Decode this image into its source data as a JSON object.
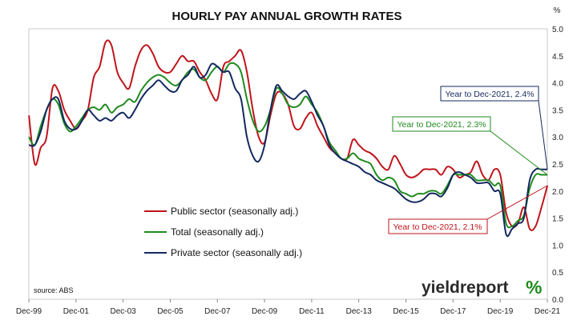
{
  "chart_data": {
    "type": "line",
    "title": "HOURLY PAY ANNUAL GROWTH RATES",
    "y_unit": "%",
    "ylim": [
      0,
      5
    ],
    "yticks": [
      "0.0",
      "0.5",
      "1.0",
      "1.5",
      "2.0",
      "2.5",
      "3.0",
      "3.5",
      "4.0",
      "4.5",
      "5.0"
    ],
    "xlim": [
      1999.917,
      2021.917
    ],
    "xticks": [
      {
        "label": "Dec-99",
        "x": 1999.917
      },
      {
        "label": "Dec-01",
        "x": 2001.917
      },
      {
        "label": "Dec-03",
        "x": 2003.917
      },
      {
        "label": "Dec-05",
        "x": 2005.917
      },
      {
        "label": "Dec-07",
        "x": 2007.917
      },
      {
        "label": "Dec-09",
        "x": 2009.917
      },
      {
        "label": "Dec-11",
        "x": 2011.917
      },
      {
        "label": "Dec-13",
        "x": 2013.917
      },
      {
        "label": "Dec-15",
        "x": 2015.917
      },
      {
        "label": "Dec-17",
        "x": 2017.917
      },
      {
        "label": "Dec-19",
        "x": 2019.917
      },
      {
        "label": "Dec-21",
        "x": 2021.917
      }
    ],
    "grid": false,
    "legend_position": "center-left",
    "series": [
      {
        "name": "Public sector (seasonally adj.)",
        "color": "#c0141b",
        "points": [
          [
            1999.92,
            3.4
          ],
          [
            2000.17,
            2.5
          ],
          [
            2000.42,
            2.8
          ],
          [
            2000.67,
            3.0
          ],
          [
            2000.92,
            3.9
          ],
          [
            2001.17,
            3.85
          ],
          [
            2001.42,
            3.5
          ],
          [
            2001.67,
            3.3
          ],
          [
            2001.92,
            3.15
          ],
          [
            2002.17,
            3.3
          ],
          [
            2002.42,
            3.5
          ],
          [
            2002.67,
            4.1
          ],
          [
            2002.92,
            4.3
          ],
          [
            2003.17,
            4.75
          ],
          [
            2003.42,
            4.7
          ],
          [
            2003.67,
            4.2
          ],
          [
            2003.92,
            4.0
          ],
          [
            2004.17,
            3.9
          ],
          [
            2004.42,
            4.3
          ],
          [
            2004.67,
            4.6
          ],
          [
            2004.92,
            4.7
          ],
          [
            2005.17,
            4.55
          ],
          [
            2005.42,
            4.3
          ],
          [
            2005.67,
            4.2
          ],
          [
            2005.92,
            4.2
          ],
          [
            2006.17,
            4.35
          ],
          [
            2006.42,
            4.5
          ],
          [
            2006.67,
            4.4
          ],
          [
            2006.92,
            4.4
          ],
          [
            2007.17,
            4.2
          ],
          [
            2007.42,
            4.05
          ],
          [
            2007.67,
            3.8
          ],
          [
            2007.92,
            3.7
          ],
          [
            2008.17,
            4.3
          ],
          [
            2008.42,
            4.4
          ],
          [
            2008.67,
            4.5
          ],
          [
            2008.92,
            4.6
          ],
          [
            2009.17,
            4.2
          ],
          [
            2009.42,
            3.5
          ],
          [
            2009.67,
            3.0
          ],
          [
            2009.92,
            2.9
          ],
          [
            2010.17,
            3.4
          ],
          [
            2010.42,
            3.8
          ],
          [
            2010.67,
            3.8
          ],
          [
            2010.92,
            3.6
          ],
          [
            2011.17,
            3.2
          ],
          [
            2011.42,
            3.15
          ],
          [
            2011.67,
            3.35
          ],
          [
            2011.92,
            3.45
          ],
          [
            2012.17,
            3.2
          ],
          [
            2012.42,
            3.0
          ],
          [
            2012.67,
            2.8
          ],
          [
            2012.92,
            2.7
          ],
          [
            2013.17,
            2.6
          ],
          [
            2013.42,
            2.6
          ],
          [
            2013.67,
            2.95
          ],
          [
            2013.92,
            2.85
          ],
          [
            2014.17,
            2.75
          ],
          [
            2014.42,
            2.7
          ],
          [
            2014.67,
            2.6
          ],
          [
            2014.92,
            2.45
          ],
          [
            2015.17,
            2.4
          ],
          [
            2015.42,
            2.65
          ],
          [
            2015.67,
            2.5
          ],
          [
            2015.92,
            2.3
          ],
          [
            2016.17,
            2.25
          ],
          [
            2016.42,
            2.3
          ],
          [
            2016.67,
            2.4
          ],
          [
            2016.92,
            2.4
          ],
          [
            2017.17,
            2.4
          ],
          [
            2017.42,
            2.3
          ],
          [
            2017.67,
            2.45
          ],
          [
            2017.92,
            2.4
          ],
          [
            2018.17,
            2.25
          ],
          [
            2018.42,
            2.3
          ],
          [
            2018.67,
            2.35
          ],
          [
            2018.92,
            2.55
          ],
          [
            2019.17,
            2.3
          ],
          [
            2019.42,
            2.2
          ],
          [
            2019.67,
            2.4
          ],
          [
            2019.92,
            2.3
          ],
          [
            2020.17,
            1.6
          ],
          [
            2020.42,
            1.35
          ],
          [
            2020.67,
            1.4
          ],
          [
            2020.92,
            1.7
          ],
          [
            2021.17,
            1.3
          ],
          [
            2021.42,
            1.35
          ],
          [
            2021.67,
            1.7
          ],
          [
            2021.92,
            2.1
          ]
        ]
      },
      {
        "name": "Total (seasonally adj.)",
        "color": "#1f8b1f",
        "points": [
          [
            1999.92,
            3.0
          ],
          [
            2000.17,
            2.85
          ],
          [
            2000.42,
            3.2
          ],
          [
            2000.67,
            3.5
          ],
          [
            2000.92,
            3.7
          ],
          [
            2001.17,
            3.6
          ],
          [
            2001.42,
            3.25
          ],
          [
            2001.67,
            3.1
          ],
          [
            2001.92,
            3.2
          ],
          [
            2002.17,
            3.35
          ],
          [
            2002.42,
            3.5
          ],
          [
            2002.67,
            3.55
          ],
          [
            2002.92,
            3.5
          ],
          [
            2003.17,
            3.6
          ],
          [
            2003.42,
            3.45
          ],
          [
            2003.67,
            3.55
          ],
          [
            2003.92,
            3.6
          ],
          [
            2004.17,
            3.7
          ],
          [
            2004.42,
            3.65
          ],
          [
            2004.67,
            3.85
          ],
          [
            2004.92,
            4.0
          ],
          [
            2005.17,
            4.1
          ],
          [
            2005.42,
            4.15
          ],
          [
            2005.67,
            4.1
          ],
          [
            2005.92,
            4.0
          ],
          [
            2006.17,
            3.95
          ],
          [
            2006.42,
            4.05
          ],
          [
            2006.67,
            4.2
          ],
          [
            2006.92,
            4.25
          ],
          [
            2007.17,
            4.1
          ],
          [
            2007.42,
            4.05
          ],
          [
            2007.67,
            4.2
          ],
          [
            2007.92,
            4.3
          ],
          [
            2008.17,
            4.2
          ],
          [
            2008.42,
            4.35
          ],
          [
            2008.67,
            4.35
          ],
          [
            2008.92,
            4.2
          ],
          [
            2009.17,
            3.7
          ],
          [
            2009.42,
            3.3
          ],
          [
            2009.67,
            3.1
          ],
          [
            2009.92,
            3.2
          ],
          [
            2010.17,
            3.5
          ],
          [
            2010.42,
            3.9
          ],
          [
            2010.67,
            3.8
          ],
          [
            2010.92,
            3.6
          ],
          [
            2011.17,
            3.55
          ],
          [
            2011.42,
            3.6
          ],
          [
            2011.67,
            3.75
          ],
          [
            2011.92,
            3.6
          ],
          [
            2012.17,
            3.45
          ],
          [
            2012.42,
            3.2
          ],
          [
            2012.67,
            2.9
          ],
          [
            2012.92,
            2.75
          ],
          [
            2013.17,
            2.6
          ],
          [
            2013.42,
            2.6
          ],
          [
            2013.67,
            2.7
          ],
          [
            2013.92,
            2.6
          ],
          [
            2014.17,
            2.55
          ],
          [
            2014.42,
            2.5
          ],
          [
            2014.67,
            2.3
          ],
          [
            2014.92,
            2.2
          ],
          [
            2015.17,
            2.25
          ],
          [
            2015.42,
            2.2
          ],
          [
            2015.67,
            2.0
          ],
          [
            2015.92,
            1.95
          ],
          [
            2016.17,
            1.9
          ],
          [
            2016.42,
            1.95
          ],
          [
            2016.67,
            1.95
          ],
          [
            2016.92,
            2.0
          ],
          [
            2017.17,
            2.0
          ],
          [
            2017.42,
            1.95
          ],
          [
            2017.67,
            2.1
          ],
          [
            2017.92,
            2.3
          ],
          [
            2018.17,
            2.3
          ],
          [
            2018.42,
            2.3
          ],
          [
            2018.67,
            2.3
          ],
          [
            2018.92,
            2.2
          ],
          [
            2019.17,
            2.2
          ],
          [
            2019.42,
            2.2
          ],
          [
            2019.67,
            2.1
          ],
          [
            2019.92,
            2.1
          ],
          [
            2020.17,
            1.4
          ],
          [
            2020.42,
            1.35
          ],
          [
            2020.67,
            1.45
          ],
          [
            2020.92,
            1.55
          ],
          [
            2021.17,
            2.05
          ],
          [
            2021.42,
            2.3
          ],
          [
            2021.67,
            2.3
          ],
          [
            2021.92,
            2.3
          ]
        ]
      },
      {
        "name": "Private sector (seasonally adj.)",
        "color": "#13285f",
        "points": [
          [
            1999.92,
            2.85
          ],
          [
            2000.17,
            2.85
          ],
          [
            2000.42,
            3.1
          ],
          [
            2000.67,
            3.5
          ],
          [
            2000.92,
            3.7
          ],
          [
            2001.17,
            3.7
          ],
          [
            2001.42,
            3.3
          ],
          [
            2001.67,
            3.15
          ],
          [
            2001.92,
            3.15
          ],
          [
            2002.17,
            3.3
          ],
          [
            2002.42,
            3.5
          ],
          [
            2002.67,
            3.4
          ],
          [
            2002.92,
            3.3
          ],
          [
            2003.17,
            3.35
          ],
          [
            2003.42,
            3.3
          ],
          [
            2003.67,
            3.4
          ],
          [
            2003.92,
            3.45
          ],
          [
            2004.17,
            3.35
          ],
          [
            2004.42,
            3.5
          ],
          [
            2004.67,
            3.7
          ],
          [
            2004.92,
            3.85
          ],
          [
            2005.17,
            3.95
          ],
          [
            2005.42,
            4.05
          ],
          [
            2005.67,
            3.95
          ],
          [
            2005.92,
            3.85
          ],
          [
            2006.17,
            3.85
          ],
          [
            2006.42,
            4.05
          ],
          [
            2006.67,
            4.15
          ],
          [
            2006.92,
            4.3
          ],
          [
            2007.17,
            4.1
          ],
          [
            2007.42,
            4.15
          ],
          [
            2007.67,
            4.35
          ],
          [
            2007.92,
            4.3
          ],
          [
            2008.17,
            4.2
          ],
          [
            2008.42,
            4.2
          ],
          [
            2008.67,
            3.9
          ],
          [
            2008.92,
            3.7
          ],
          [
            2009.17,
            3.0
          ],
          [
            2009.42,
            2.65
          ],
          [
            2009.67,
            2.55
          ],
          [
            2009.92,
            2.85
          ],
          [
            2010.17,
            3.5
          ],
          [
            2010.42,
            3.95
          ],
          [
            2010.67,
            3.85
          ],
          [
            2010.92,
            3.75
          ],
          [
            2011.17,
            3.7
          ],
          [
            2011.42,
            3.8
          ],
          [
            2011.67,
            3.85
          ],
          [
            2011.92,
            3.65
          ],
          [
            2012.17,
            3.4
          ],
          [
            2012.42,
            3.2
          ],
          [
            2012.67,
            2.85
          ],
          [
            2012.92,
            2.7
          ],
          [
            2013.17,
            2.6
          ],
          [
            2013.42,
            2.55
          ],
          [
            2013.67,
            2.5
          ],
          [
            2013.92,
            2.45
          ],
          [
            2014.17,
            2.35
          ],
          [
            2014.42,
            2.3
          ],
          [
            2014.67,
            2.2
          ],
          [
            2014.92,
            2.15
          ],
          [
            2015.17,
            2.1
          ],
          [
            2015.42,
            2.05
          ],
          [
            2015.67,
            1.95
          ],
          [
            2015.92,
            1.85
          ],
          [
            2016.17,
            1.8
          ],
          [
            2016.42,
            1.8
          ],
          [
            2016.67,
            1.85
          ],
          [
            2016.92,
            1.95
          ],
          [
            2017.17,
            1.95
          ],
          [
            2017.42,
            1.9
          ],
          [
            2017.67,
            2.05
          ],
          [
            2017.92,
            2.3
          ],
          [
            2018.17,
            2.35
          ],
          [
            2018.42,
            2.3
          ],
          [
            2018.67,
            2.25
          ],
          [
            2018.92,
            2.15
          ],
          [
            2019.17,
            2.15
          ],
          [
            2019.42,
            2.15
          ],
          [
            2019.67,
            2.0
          ],
          [
            2019.92,
            1.95
          ],
          [
            2020.17,
            1.2
          ],
          [
            2020.42,
            1.3
          ],
          [
            2020.67,
            1.4
          ],
          [
            2020.92,
            1.5
          ],
          [
            2021.17,
            2.2
          ],
          [
            2021.42,
            2.4
          ],
          [
            2021.67,
            2.4
          ],
          [
            2021.92,
            2.4
          ]
        ]
      }
    ],
    "annotations": [
      {
        "text": "Year to Dec-2021, 2.4%",
        "color": "#13285f",
        "series": 2
      },
      {
        "text": "Year to Dec-2021, 2.3%",
        "color": "#1f8b1f",
        "series": 1
      },
      {
        "text": "Year to Dec-2021, 2.1%",
        "color": "#c0141b",
        "series": 0
      }
    ],
    "source": "source: ABS"
  },
  "logo": {
    "text": "yieldreport",
    "percent": "%",
    "color_red": "#c0141b",
    "color_green": "#1f8b1f"
  }
}
